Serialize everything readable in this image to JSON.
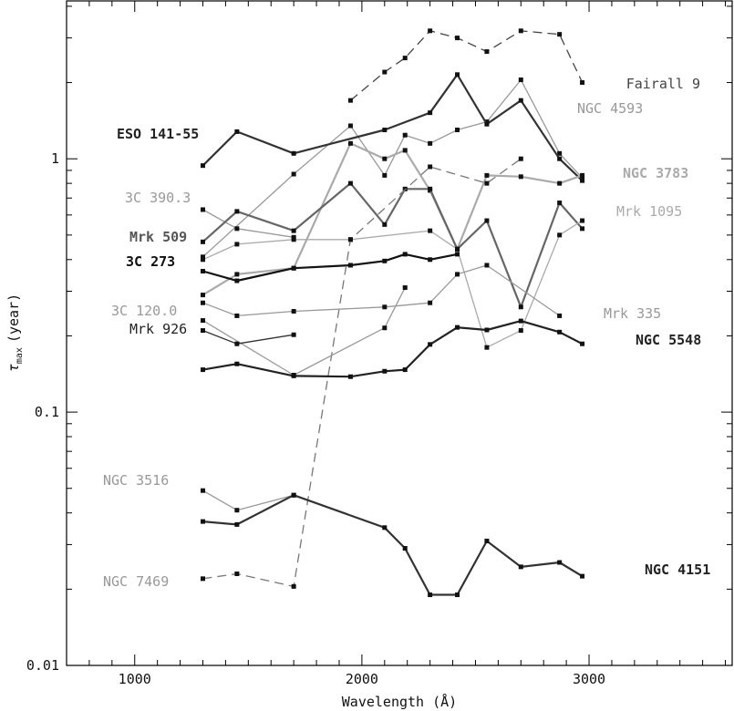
{
  "chart_data": {
    "type": "line",
    "xlabel": "Wavelength (Å)",
    "ylabel": {
      "main": "τ",
      "sub": "max",
      "rest": "(year)"
    },
    "xlim": [
      700,
      3630
    ],
    "ylim": [
      0.01,
      4.2
    ],
    "yscale": "log",
    "x_ticks": [
      1000,
      2000,
      3000
    ],
    "y_ticks": [
      {
        "value": 0.01,
        "label": "0.01"
      },
      {
        "value": 0.1,
        "label": "0.1"
      },
      {
        "value": 1,
        "label": "1"
      }
    ],
    "series": [
      {
        "name": "Fairall 9",
        "color": "#444444",
        "bold": false,
        "dashed": true,
        "width": 1.3,
        "x": [
          1950,
          2100,
          2190,
          2300,
          2420,
          2550,
          2700,
          2870,
          2970
        ],
        "y": [
          1.7,
          2.2,
          2.5,
          3.2,
          3.0,
          2.65,
          3.2,
          3.1,
          2.0
        ]
      },
      {
        "name": "NGC 4593",
        "color": "#999999",
        "bold": false,
        "dashed": false,
        "width": 1.3,
        "x": [
          1300,
          1700,
          1950,
          2100,
          2190,
          2300,
          2420,
          2550,
          2700,
          2870,
          2970
        ],
        "y": [
          0.41,
          0.87,
          1.35,
          0.86,
          1.24,
          1.15,
          1.3,
          1.4,
          2.05,
          1.05,
          0.84
        ]
      },
      {
        "name": "ESO 141-55",
        "color": "#333333",
        "bold": true,
        "dashed": false,
        "width": 2.2,
        "x": [
          1300,
          1450,
          1700,
          2100,
          2300,
          2420,
          2550,
          2700,
          2870,
          2970
        ],
        "y": [
          0.94,
          1.28,
          1.05,
          1.3,
          1.52,
          2.15,
          1.37,
          1.7,
          1.0,
          0.82
        ]
      },
      {
        "name": "NGC 3783",
        "color": "#aaaaaa",
        "bold": true,
        "dashed": false,
        "width": 2.2,
        "x": [
          1300,
          1450,
          1700,
          1950,
          2100,
          2190,
          2300,
          2420,
          2550,
          2700,
          2870,
          2970
        ],
        "y": [
          0.29,
          0.35,
          0.37,
          1.15,
          1.0,
          1.08,
          0.75,
          0.44,
          0.86,
          0.85,
          0.8,
          0.86
        ]
      },
      {
        "name": "3C 390.3",
        "color": "#999999",
        "bold": false,
        "dashed": false,
        "width": 1.3,
        "x": [
          1300,
          1450,
          1700
        ],
        "y": [
          0.63,
          0.53,
          0.49
        ]
      },
      {
        "name": "Mrk 509",
        "color": "#666666",
        "bold": true,
        "dashed": false,
        "width": 2.2,
        "x": [
          1300,
          1450,
          1700,
          1950,
          2100,
          2190,
          2300,
          2420,
          2550,
          2700,
          2870,
          2970
        ],
        "y": [
          0.47,
          0.62,
          0.52,
          0.8,
          0.55,
          0.76,
          0.76,
          0.44,
          0.57,
          0.26,
          0.67,
          0.53
        ]
      },
      {
        "name": "Mrk 1095",
        "color": "#aaaaaa",
        "bold": false,
        "dashed": false,
        "width": 1.3,
        "x": [
          1300,
          1450,
          1700,
          1950,
          2300,
          2420,
          2550,
          2700,
          2870,
          2970
        ],
        "y": [
          0.4,
          0.46,
          0.48,
          0.48,
          0.52,
          0.44,
          0.18,
          0.21,
          0.5,
          0.57
        ]
      },
      {
        "name": "3C 273",
        "color": "#111111",
        "bold": true,
        "dashed": false,
        "width": 2.2,
        "x": [
          1300,
          1450,
          1700,
          1950,
          2100,
          2190,
          2300,
          2420
        ],
        "y": [
          0.36,
          0.33,
          0.37,
          0.38,
          0.395,
          0.42,
          0.4,
          0.42
        ]
      },
      {
        "name": "NGC 7469",
        "color": "#777777",
        "bold": false,
        "dashed": true,
        "width": 1.3,
        "x": [
          1300,
          1450,
          1700,
          1950,
          2300,
          2550,
          2700
        ],
        "y": [
          0.022,
          0.023,
          0.0205,
          0.48,
          0.93,
          0.8,
          1.0
        ]
      },
      {
        "name": "Mrk 335",
        "color": "#999999",
        "bold": false,
        "dashed": false,
        "width": 1.3,
        "x": [
          1300,
          1450,
          1700,
          2100,
          2300,
          2420,
          2550,
          2870
        ],
        "y": [
          0.27,
          0.24,
          0.25,
          0.26,
          0.27,
          0.35,
          0.38,
          0.24
        ]
      },
      {
        "name": "3C 120.0",
        "color": "#999999",
        "bold": false,
        "dashed": false,
        "width": 1.3,
        "x": [
          1300,
          1700,
          2100,
          2190
        ],
        "y": [
          0.23,
          0.14,
          0.215,
          0.31
        ]
      },
      {
        "name": "Mrk 926",
        "color": "#333333",
        "bold": false,
        "dashed": false,
        "width": 1.3,
        "x": [
          1300,
          1450,
          1700
        ],
        "y": [
          0.21,
          0.186,
          0.202
        ]
      },
      {
        "name": "NGC 5548",
        "color": "#222222",
        "bold": true,
        "dashed": false,
        "width": 2.2,
        "x": [
          1300,
          1450,
          1700,
          1950,
          2100,
          2190,
          2300,
          2420,
          2550,
          2700,
          2870,
          2970
        ],
        "y": [
          0.147,
          0.155,
          0.139,
          0.138,
          0.145,
          0.147,
          0.185,
          0.216,
          0.211,
          0.229,
          0.207,
          0.186
        ]
      },
      {
        "name": "NGC 3516",
        "color": "#999999",
        "bold": false,
        "dashed": false,
        "width": 1.3,
        "x": [
          1300,
          1450,
          1700
        ],
        "y": [
          0.049,
          0.041,
          0.047
        ]
      },
      {
        "name": "NGC 4151",
        "color": "#333333",
        "bold": true,
        "dashed": false,
        "width": 2.2,
        "x": [
          1300,
          1450,
          1700,
          2100,
          2190,
          2300,
          2420,
          2550,
          2700,
          2870,
          2970
        ],
        "y": [
          0.037,
          0.036,
          0.047,
          0.035,
          0.029,
          0.019,
          0.019,
          0.031,
          0.0245,
          0.0255,
          0.0225
        ]
      }
    ],
    "labels": [
      {
        "series": "Fairall 9",
        "text": "Fairall 9",
        "color": "#444444",
        "bold": false
      },
      {
        "series": "NGC 4593",
        "text": "NGC 4593",
        "color": "#999999",
        "bold": false
      },
      {
        "series": "ESO 141-55",
        "text": "ESO 141-55",
        "color": "#222222",
        "bold": true
      },
      {
        "series": "NGC 3783",
        "text": "NGC 3783",
        "color": "#aaaaaa",
        "bold": true
      },
      {
        "series": "3C 390.3",
        "text": "3C 390.3",
        "color": "#999999",
        "bold": false
      },
      {
        "series": "Mrk 1095",
        "text": "Mrk 1095",
        "color": "#aaaaaa",
        "bold": false
      },
      {
        "series": "Mrk 509",
        "text": "Mrk 509",
        "color": "#555555",
        "bold": true
      },
      {
        "series": "3C 273",
        "text": "3C 273",
        "color": "#111111",
        "bold": true
      },
      {
        "series": "3C 120.0",
        "text": "3C 120.0",
        "color": "#999999",
        "bold": false
      },
      {
        "series": "Mrk 335",
        "text": "Mrk 335",
        "color": "#999999",
        "bold": false
      },
      {
        "series": "Mrk 926",
        "text": "Mrk 926",
        "color": "#222222",
        "bold": false
      },
      {
        "series": "NGC 5548",
        "text": "NGC 5548",
        "color": "#222222",
        "bold": true
      },
      {
        "series": "NGC 3516",
        "text": "NGC 3516",
        "color": "#999999",
        "bold": false
      },
      {
        "series": "NGC 7469",
        "text": "NGC 7469",
        "color": "#999999",
        "bold": false
      },
      {
        "series": "NGC 4151",
        "text": "NGC 4151",
        "color": "#222222",
        "bold": true
      }
    ]
  }
}
